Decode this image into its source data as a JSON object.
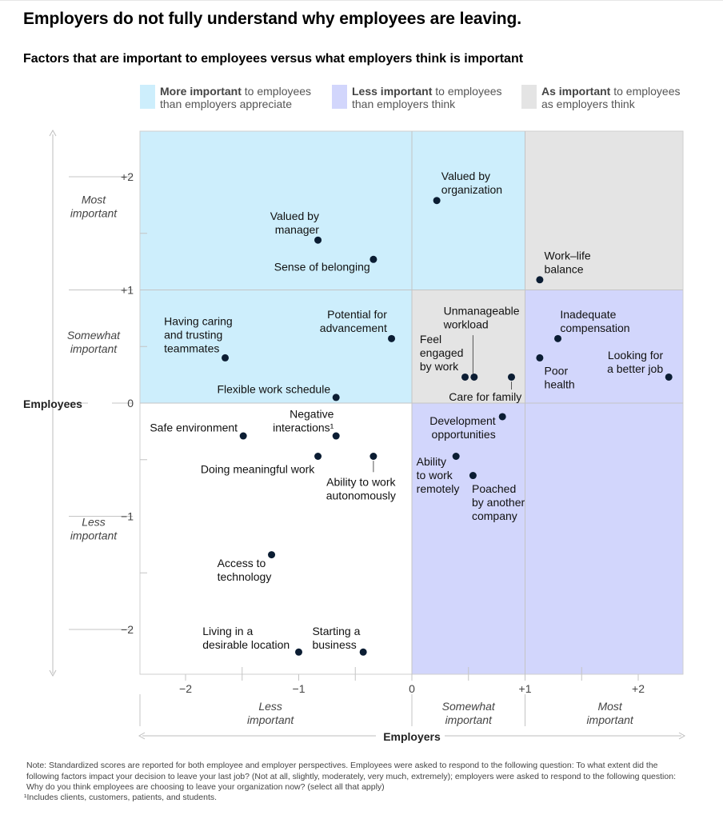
{
  "title": "Employers do not fully understand why employees are leaving.",
  "subtitle": "Factors that are important to employees versus what employers think is important",
  "legend": [
    {
      "bold": "More important",
      "rest1": " to employees",
      "line2": "than employers appreciate",
      "color": "#cdeefc"
    },
    {
      "bold": "Less important",
      "rest1": " to employees",
      "line2": "than employers think",
      "color": "#d2d6fc"
    },
    {
      "bold": "As important",
      "rest1": " to employees",
      "line2": "as employers think",
      "color": "#e4e4e4"
    }
  ],
  "chart_data": {
    "type": "scatter",
    "xlabel": "Employers",
    "ylabel": "Employees",
    "xlim": [
      -2.4,
      2.4
    ],
    "ylim": [
      -2.4,
      2.4
    ],
    "x_ticks": [
      "−2",
      "−1",
      "0",
      "+1",
      "+2"
    ],
    "y_ticks": [
      "+2",
      "+1",
      "0",
      "−1",
      "−2"
    ],
    "x_bands": [
      {
        "label": "Less\nimportant"
      },
      {
        "label": "Somewhat\nimportant"
      },
      {
        "label": "Most\nimportant"
      }
    ],
    "y_bands": [
      {
        "label": "Most\nimportant"
      },
      {
        "label": "Somewhat\nimportant"
      },
      {
        "label": "Less\nimportant"
      }
    ],
    "regions": [
      {
        "x": [
          -2.4,
          0
        ],
        "y": [
          0,
          2.4
        ],
        "category": "More important to employees than employers appreciate",
        "color": "#cdeefc"
      },
      {
        "x": [
          0,
          1
        ],
        "y": [
          1,
          2.4
        ],
        "category": "More important to employees than employers appreciate",
        "color": "#cdeefc"
      },
      {
        "x": [
          1,
          2.4
        ],
        "y": [
          1,
          2.4
        ],
        "category": "As important to employees as employers think",
        "color": "#e4e4e4"
      },
      {
        "x": [
          0,
          1
        ],
        "y": [
          0,
          1
        ],
        "category": "As important to employees as employers think",
        "color": "#e4e4e4"
      },
      {
        "x": [
          1,
          2.4
        ],
        "y": [
          0,
          1
        ],
        "category": "Less important to employees than employers think",
        "color": "#d2d6fc"
      },
      {
        "x": [
          0,
          2.4
        ],
        "y": [
          -2.4,
          0
        ],
        "category": "Less important to employees than employers think",
        "color": "#d2d6fc"
      }
    ],
    "points": [
      {
        "label": "Valued by\norganization",
        "x": 0.22,
        "y": 1.79,
        "anchor": "start",
        "lx": 0.26,
        "ly": 1.97
      },
      {
        "label": "Valued by\nmanager",
        "x": -0.83,
        "y": 1.44,
        "anchor": "end",
        "lx": -0.82,
        "ly": 1.62
      },
      {
        "label": "Sense of belonging",
        "x": -0.34,
        "y": 1.27,
        "anchor": "end",
        "lx": -0.37,
        "ly": 1.17
      },
      {
        "label": "Work–life\nbalance",
        "x": 1.13,
        "y": 1.09,
        "anchor": "start",
        "lx": 1.17,
        "ly": 1.27
      },
      {
        "label": "Having caring\nand trusting\nteammates",
        "x": -1.65,
        "y": 0.4,
        "anchor": "start",
        "lx": -2.19,
        "ly": 0.69
      },
      {
        "label": "Potential for\nadvancement",
        "x": -0.18,
        "y": 0.57,
        "anchor": "end",
        "lx": -0.22,
        "ly": 0.75
      },
      {
        "label": "Unmanageable\nworkload",
        "x": 0.55,
        "y": 0.23,
        "anchor": "start",
        "lx": 0.28,
        "ly": 0.78
      },
      {
        "label": "Feel\nengaged\nby work",
        "x": 0.47,
        "y": 0.23,
        "anchor": "start",
        "lx": 0.07,
        "ly": 0.53
      },
      {
        "label": "Care for family",
        "x": 0.88,
        "y": 0.23,
        "anchor": "end",
        "lx": 0.97,
        "ly": 0.02
      },
      {
        "label": "Inadequate\ncompensation",
        "x": 1.29,
        "y": 0.57,
        "anchor": "start",
        "lx": 1.31,
        "ly": 0.75
      },
      {
        "label": "Poor\nhealth",
        "x": 1.13,
        "y": 0.4,
        "anchor": "start",
        "lx": 1.17,
        "ly": 0.25
      },
      {
        "label": "Looking for\na better job",
        "x": 2.27,
        "y": 0.23,
        "anchor": "end",
        "lx": 2.22,
        "ly": 0.39
      },
      {
        "label": "Flexible work schedule",
        "x": -0.67,
        "y": 0.05,
        "anchor": "end",
        "lx": -0.72,
        "ly": 0.09
      },
      {
        "label": "Safe environment",
        "x": -1.49,
        "y": -0.29,
        "anchor": "end",
        "lx": -1.54,
        "ly": -0.25
      },
      {
        "label": "Negative\ninteractions¹",
        "x": -0.67,
        "y": -0.29,
        "anchor": "end",
        "lx": -0.69,
        "ly": -0.13
      },
      {
        "label": "Development\nopportunities",
        "x": 0.8,
        "y": -0.12,
        "anchor": "end",
        "lx": 0.74,
        "ly": -0.19
      },
      {
        "label": "Doing meaningful work",
        "x": -0.83,
        "y": -0.47,
        "anchor": "end",
        "lx": -0.86,
        "ly": -0.62
      },
      {
        "label": "Ability to work\nautonomously",
        "x": -0.34,
        "y": -0.47,
        "anchor": "middle",
        "lx": -0.45,
        "ly": -0.73
      },
      {
        "label": "Ability\nto work\nremotely",
        "x": 0.39,
        "y": -0.47,
        "anchor": "start",
        "lx": 0.04,
        "ly": -0.55
      },
      {
        "label": "Poached\nby another\ncompany",
        "x": 0.54,
        "y": -0.64,
        "anchor": "start",
        "lx": 0.53,
        "ly": -0.79
      },
      {
        "label": "Access to\ntechnology",
        "x": -1.24,
        "y": -1.34,
        "anchor": "start",
        "lx": -1.72,
        "ly": -1.45
      },
      {
        "label": "Living in a\ndesirable location",
        "x": -1.0,
        "y": -2.2,
        "anchor": "start",
        "lx": -1.85,
        "ly": -2.05
      },
      {
        "label": "Starting a\nbusiness",
        "x": -0.43,
        "y": -2.2,
        "anchor": "start",
        "lx": -0.88,
        "ly": -2.05
      }
    ]
  },
  "note": "Note: Standardized scores are reported for both employee and employer perspectives. Employees were asked to respond to the following question: To what extent did the following factors impact your decision to leave your last job? (Not at all, slightly, moderately, very much, extremely); employers were asked to respond to the following question: Why do you think employees are choosing to leave your organization now? (select all that apply)",
  "footnote": "¹Includes clients, customers, patients, and students."
}
